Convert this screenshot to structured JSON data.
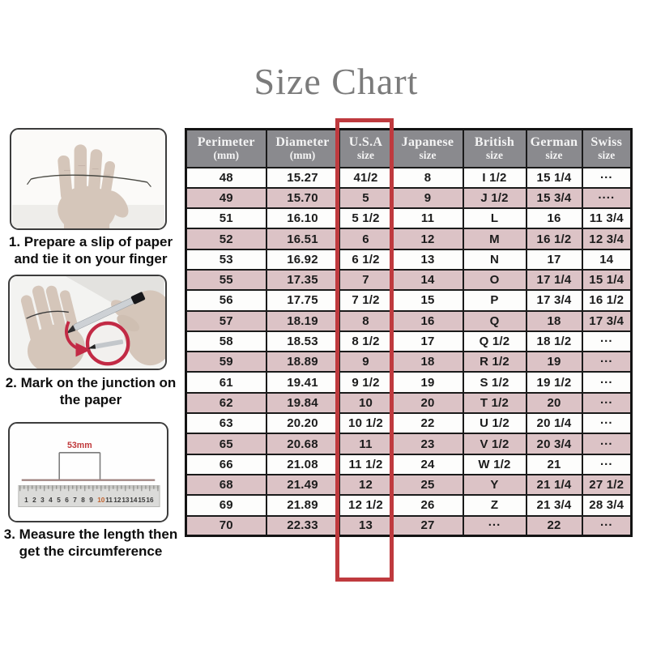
{
  "page": {
    "title": "Size Chart"
  },
  "colors": {
    "header_bg": "#8a8a8e",
    "row_pink": "#dcc3c6",
    "row_white": "#fdfdfc",
    "highlight_red": "#bf3a3e",
    "border_black": "#1a1a1a",
    "title_gray": "#7b7b7b",
    "ruler_number_highlight": "#c2622d",
    "annotation_red": "#c22a45"
  },
  "steps": [
    {
      "icon": "hand-with-paper-slip-icon",
      "caption_line1": "1. Prepare a slip of paper",
      "caption_line2": "and tie it on your finger"
    },
    {
      "icon": "pen-marking-hand-icon",
      "caption_line1": "2. Mark on the junction on",
      "caption_line2": "the paper"
    },
    {
      "icon": "ruler-measurement-icon",
      "caption_line1": "3. Measure the length then",
      "caption_line2": "get the circumference"
    }
  ],
  "ruler": {
    "length_label": "53mm",
    "numbers": [
      "1",
      "2",
      "3",
      "4",
      "5",
      "6",
      "7",
      "8",
      "9",
      "10",
      "11",
      "12",
      "13",
      "14",
      "15",
      "16"
    ],
    "highlighted_number": "10"
  },
  "table": {
    "header_lines": [
      {
        "line1": "Perimeter",
        "line2": "(mm)"
      },
      {
        "line1": "Diameter",
        "line2": "(mm)"
      },
      {
        "line1": "U.S.A",
        "line2": "size"
      },
      {
        "line1": "Japanese",
        "line2": "size"
      },
      {
        "line1": "British",
        "line2": "size"
      },
      {
        "line1": "German",
        "line2": "size"
      },
      {
        "line1": "Swiss",
        "line2": "size"
      }
    ],
    "highlighted_column": "U.S.A size"
  },
  "chart_data": {
    "type": "table",
    "title": "Size Chart",
    "columns": [
      "Perimeter (mm)",
      "Diameter (mm)",
      "U.S.A size",
      "Japanese size",
      "British size",
      "German size",
      "Swiss size"
    ],
    "rows": [
      [
        "48",
        "15.27",
        "41/2",
        "8",
        "I 1/2",
        "15 1/4",
        "···"
      ],
      [
        "49",
        "15.70",
        "5",
        "9",
        "J 1/2",
        "15 3/4",
        "····"
      ],
      [
        "51",
        "16.10",
        "5 1/2",
        "11",
        "L",
        "16",
        "11 3/4"
      ],
      [
        "52",
        "16.51",
        "6",
        "12",
        "M",
        "16 1/2",
        "12 3/4"
      ],
      [
        "53",
        "16.92",
        "6 1/2",
        "13",
        "N",
        "17",
        "14"
      ],
      [
        "55",
        "17.35",
        "7",
        "14",
        "O",
        "17 1/4",
        "15 1/4"
      ],
      [
        "56",
        "17.75",
        "7 1/2",
        "15",
        "P",
        "17 3/4",
        "16 1/2"
      ],
      [
        "57",
        "18.19",
        "8",
        "16",
        "Q",
        "18",
        "17 3/4"
      ],
      [
        "58",
        "18.53",
        "8 1/2",
        "17",
        "Q 1/2",
        "18 1/2",
        "···"
      ],
      [
        "59",
        "18.89",
        "9",
        "18",
        "R 1/2",
        "19",
        "···"
      ],
      [
        "61",
        "19.41",
        "9 1/2",
        "19",
        "S 1/2",
        "19 1/2",
        "···"
      ],
      [
        "62",
        "19.84",
        "10",
        "20",
        "T 1/2",
        "20",
        "···"
      ],
      [
        "63",
        "20.20",
        "10 1/2",
        "22",
        "U 1/2",
        "20 1/4",
        "···"
      ],
      [
        "65",
        "20.68",
        "11",
        "23",
        "V 1/2",
        "20 3/4",
        "···"
      ],
      [
        "66",
        "21.08",
        "11 1/2",
        "24",
        "W 1/2",
        "21",
        "···"
      ],
      [
        "68",
        "21.49",
        "12",
        "25",
        "Y",
        "21 1/4",
        "27 1/2"
      ],
      [
        "69",
        "21.89",
        "12 1/2",
        "26",
        "Z",
        "21 3/4",
        "28 3/4"
      ],
      [
        "70",
        "22.33",
        "13",
        "27",
        "···",
        "22",
        "···"
      ]
    ]
  }
}
